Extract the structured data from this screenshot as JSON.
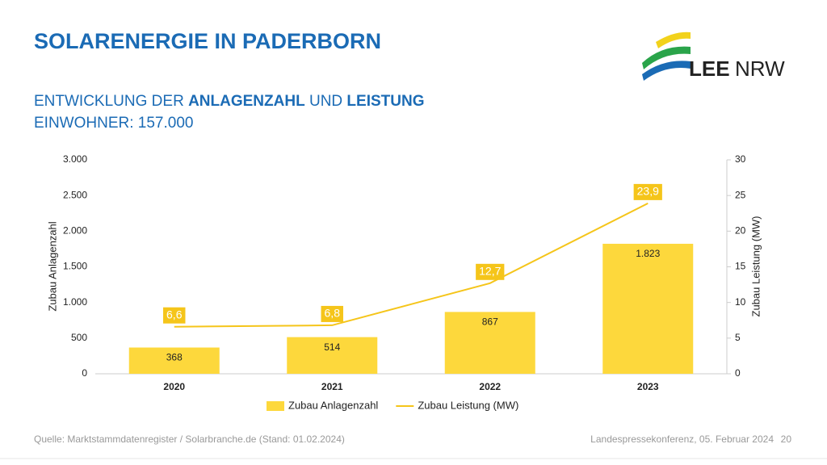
{
  "header": {
    "title": "SOLARENERGIE IN PADERBORN",
    "subtitle": [
      "ENTWICKLUNG DER ",
      "ANLAGENZAHL",
      " UND ",
      "LEISTUNG"
    ],
    "subtitle2": "EINWOHNER: 157.000"
  },
  "logo": {
    "text1": "LEE",
    "text2": "NRW"
  },
  "chart_data": {
    "type": "combo",
    "categories": [
      "2020",
      "2021",
      "2022",
      "2023"
    ],
    "series": [
      {
        "name": "Zubau Anlagenzahl",
        "type": "bar",
        "color": "#fdd83c",
        "values": [
          368,
          514,
          867,
          1823
        ],
        "value_labels": [
          "368",
          "514",
          "867",
          "1.823"
        ]
      },
      {
        "name": "Zubau Leistung (MW)",
        "type": "line",
        "axis": "y2",
        "color": "#f5c51a",
        "values": [
          6.6,
          6.8,
          12.7,
          23.9
        ],
        "value_labels": [
          "6,6",
          "6,8",
          "12,7",
          "23,9"
        ]
      }
    ],
    "ylim": [
      0,
      3000
    ],
    "yticks": [
      0,
      500,
      {
        "value": 1000,
        "label": "1.000"
      },
      {
        "value": 1500,
        "label": "1.500"
      },
      {
        "value": 2000,
        "label": "2.000"
      },
      {
        "value": 2500,
        "label": "2.500"
      },
      {
        "value": 3000,
        "label": "3.000"
      }
    ],
    "y2lim": [
      0,
      30
    ],
    "y2ticks": [
      0,
      5,
      10,
      15,
      20,
      25,
      30
    ],
    "ylabel": "Zubau Anlagenzahl",
    "y2label": "Zubau Leistung (MW)",
    "grid": false,
    "legend": "bottom"
  },
  "footer": {
    "source": "Quelle: Marktstammdatenregister / Solarbranche.de (Stand: 01.02.2024)",
    "event": "Landespressekonferenz, 05. Februar 2024",
    "page": "20"
  }
}
